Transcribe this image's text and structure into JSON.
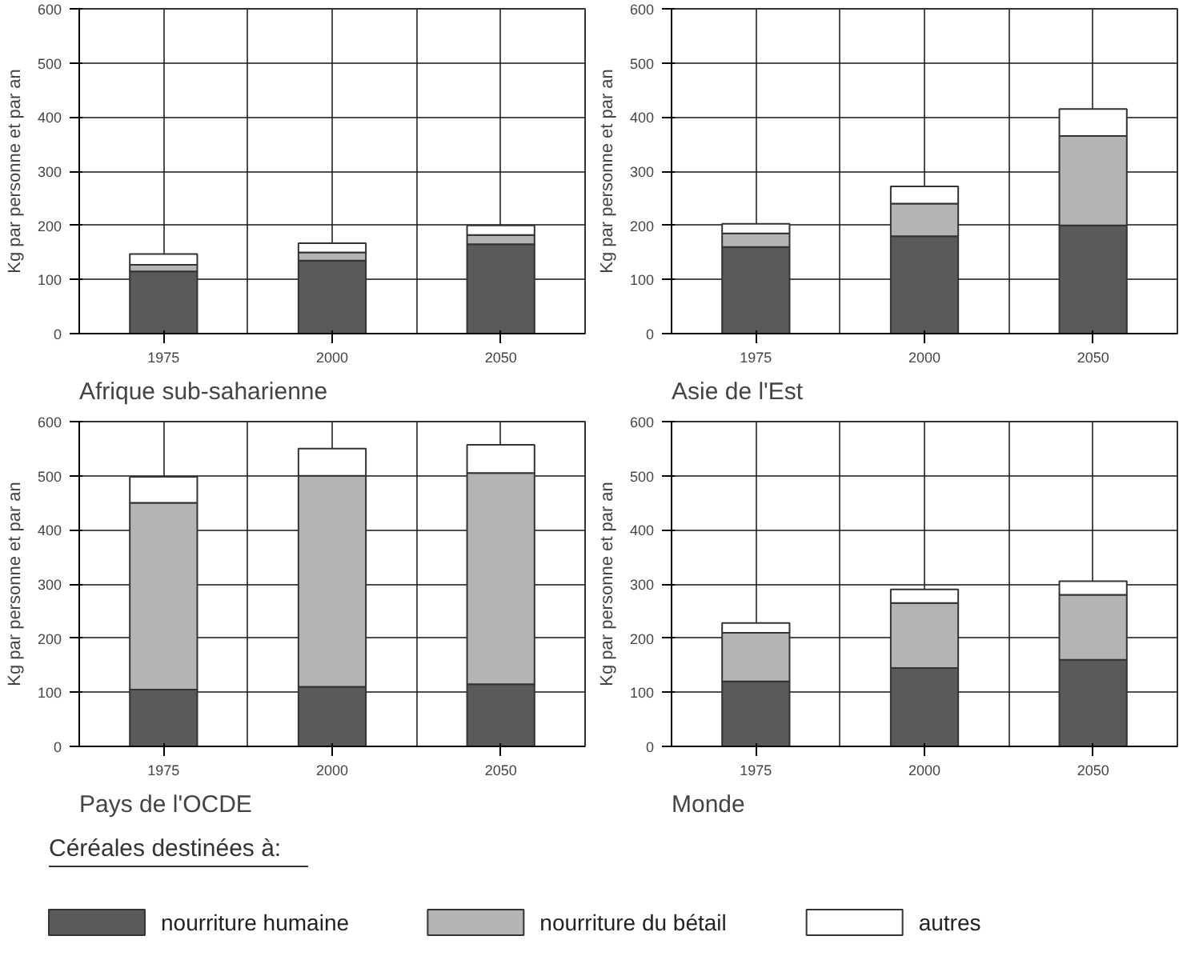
{
  "chart_data": [
    {
      "type": "bar",
      "stacked": true,
      "title": "Afrique sub-saharienne",
      "ylabel": "Kg par personne et par an",
      "categories": [
        "1975",
        "2000",
        "2050"
      ],
      "ylim": [
        0,
        600
      ],
      "yticks": [
        0,
        100,
        200,
        300,
        400,
        500,
        600
      ],
      "grid": true,
      "legend": false,
      "series": [
        {
          "color": "#5a5a5a",
          "values": [
            115,
            135,
            165
          ]
        },
        {
          "color": "#b4b4b4",
          "values": [
            12,
            15,
            17
          ]
        },
        {
          "color": "#ffffff",
          "values": [
            20,
            17,
            18
          ]
        }
      ]
    },
    {
      "type": "bar",
      "stacked": true,
      "title": "Asie de l'Est",
      "ylabel": "Kg par personne et par an",
      "categories": [
        "1975",
        "2000",
        "2050"
      ],
      "ylim": [
        0,
        600
      ],
      "yticks": [
        0,
        100,
        200,
        300,
        400,
        500,
        600
      ],
      "grid": true,
      "legend": false,
      "series": [
        {
          "color": "#5a5a5a",
          "values": [
            160,
            180,
            200
          ]
        },
        {
          "color": "#b4b4b4",
          "values": [
            25,
            60,
            165
          ]
        },
        {
          "color": "#ffffff",
          "values": [
            18,
            32,
            50
          ]
        }
      ]
    },
    {
      "type": "bar",
      "stacked": true,
      "title": "Pays de l'OCDE",
      "ylabel": "Kg par personne et par an",
      "categories": [
        "1975",
        "2000",
        "2050"
      ],
      "ylim": [
        0,
        600
      ],
      "yticks": [
        0,
        100,
        200,
        300,
        400,
        500,
        600
      ],
      "grid": true,
      "legend": "bottom",
      "legend_title": "Céréales destinées à:",
      "series": [
        {
          "name": "nourriture humaine",
          "color": "#5a5a5a",
          "values": [
            105,
            110,
            115
          ]
        },
        {
          "name": "nourriture du bétail",
          "color": "#b4b4b4",
          "values": [
            345,
            390,
            390
          ]
        },
        {
          "name": "autres",
          "color": "#ffffff",
          "values": [
            48,
            50,
            52
          ]
        }
      ]
    },
    {
      "type": "bar",
      "stacked": true,
      "title": "Monde",
      "ylabel": "Kg par personne et par an",
      "categories": [
        "1975",
        "2000",
        "2050"
      ],
      "ylim": [
        0,
        600
      ],
      "yticks": [
        0,
        100,
        200,
        300,
        400,
        500,
        600
      ],
      "grid": true,
      "legend": false,
      "series": [
        {
          "color": "#5a5a5a",
          "values": [
            120,
            145,
            160
          ]
        },
        {
          "color": "#b4b4b4",
          "values": [
            90,
            120,
            120
          ]
        },
        {
          "color": "#ffffff",
          "values": [
            18,
            25,
            25
          ]
        }
      ]
    }
  ]
}
